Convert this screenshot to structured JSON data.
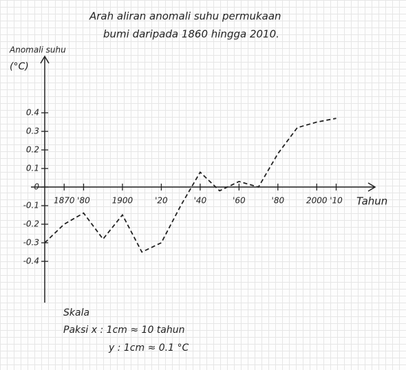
{
  "chart_data": {
    "type": "line",
    "title": [
      "Arah aliran anomali suhu permukaan",
      "bumi daripada 1860 hingga 2010."
    ],
    "ylabel": [
      "Anomali suhu",
      "(°C)"
    ],
    "xlabel": "Tahun",
    "x": [
      1860,
      1870,
      1880,
      1890,
      1900,
      1910,
      1920,
      1930,
      1940,
      1950,
      1960,
      1970,
      1980,
      1990,
      2000,
      2010
    ],
    "values": [
      -0.3,
      -0.2,
      -0.14,
      -0.28,
      -0.15,
      -0.35,
      -0.3,
      -0.1,
      0.08,
      -0.02,
      0.03,
      0,
      0.18,
      0.32,
      0.35,
      0.37
    ],
    "color": "#222222",
    "line_style": "dashed",
    "xlim": [
      1860,
      2030
    ],
    "ylim": [
      -0.6,
      0.7
    ],
    "xticks": [
      1870,
      {
        "value": 1880,
        "label": "'80"
      },
      1900,
      {
        "value": 1920,
        "label": "'20"
      },
      {
        "value": 1940,
        "label": "'40"
      },
      {
        "value": 1960,
        "label": "'60"
      },
      {
        "value": 1980,
        "label": "'80"
      },
      2000,
      {
        "value": 2010,
        "label": "'10"
      }
    ],
    "yticks": [
      0.4,
      0.3,
      0.2,
      0.1,
      0,
      -0.1,
      -0.2,
      -0.3,
      -0.4
    ],
    "annotations": [
      "Skala",
      "Paksi x : 1cm ≈ 10 tahun",
      "y : 1cm ≈ 0.1 °C"
    ]
  }
}
